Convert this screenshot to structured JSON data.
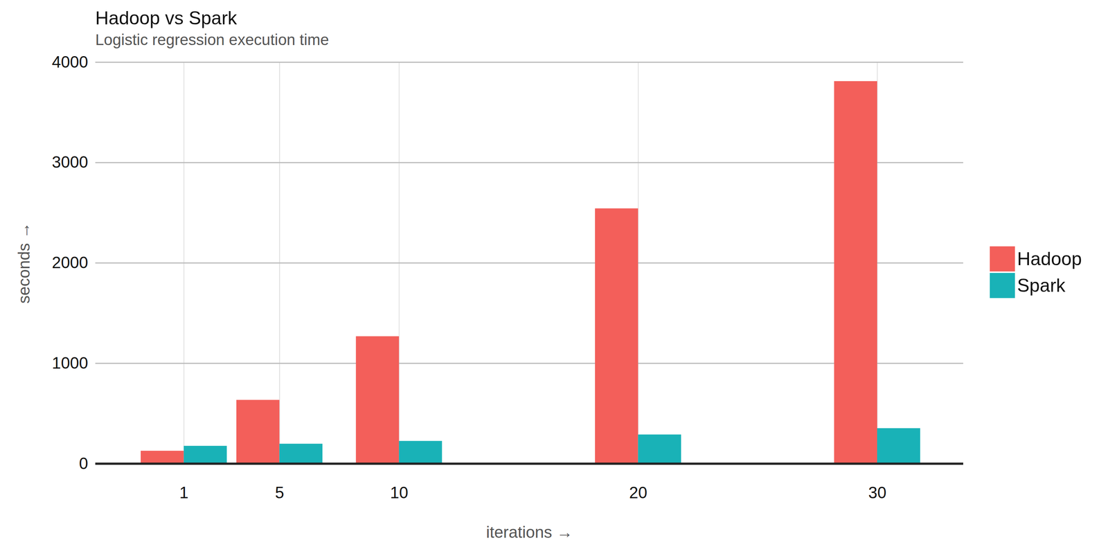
{
  "chart_data": {
    "type": "bar",
    "title": "Hadoop vs Spark",
    "subtitle": "Logistic regression execution time",
    "x_label": "iterations",
    "y_label": "seconds",
    "x": [
      1,
      5,
      10,
      20,
      30
    ],
    "series": [
      {
        "name": "Hadoop",
        "color": "#f35f5a",
        "values": [
          127,
          634,
          1268,
          2542,
          3810
        ]
      },
      {
        "name": "Spark",
        "color": "#19b2b7",
        "values": [
          176,
          197,
          225,
          289,
          352
        ]
      }
    ],
    "xlim": [
      -2.7,
      33.6
    ],
    "xticks": [
      1,
      5,
      10,
      20,
      30
    ],
    "ylim": [
      0,
      4000
    ],
    "yticks": [
      0,
      1000,
      2000,
      3000,
      4000
    ],
    "grid": true,
    "legend": "right"
  }
}
